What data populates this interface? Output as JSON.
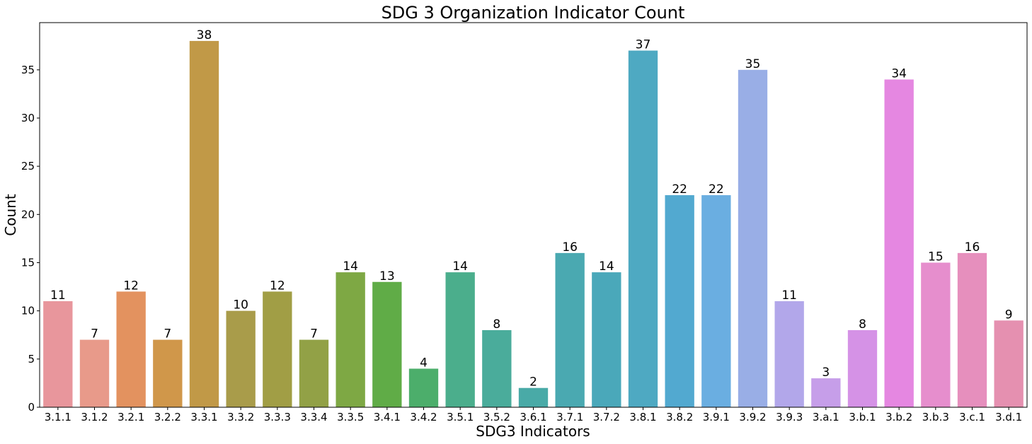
{
  "chart_data": {
    "type": "bar",
    "title": "SDG 3 Organization Indicator Count",
    "xlabel": "SDG3 Indicators",
    "ylabel": "Count",
    "ylim": [
      0,
      39.9
    ],
    "yticks": [
      0,
      5,
      10,
      15,
      20,
      25,
      30,
      35
    ],
    "grid": false,
    "legend": "none",
    "categories": [
      "3.1.1",
      "3.1.2",
      "3.2.1",
      "3.2.2",
      "3.3.1",
      "3.3.2",
      "3.3.3",
      "3.3.4",
      "3.3.5",
      "3.4.1",
      "3.4.2",
      "3.5.1",
      "3.5.2",
      "3.6.1",
      "3.7.1",
      "3.7.2",
      "3.8.1",
      "3.8.2",
      "3.9.1",
      "3.9.2",
      "3.9.3",
      "3.a.1",
      "3.b.1",
      "3.b.2",
      "3.b.3",
      "3.c.1",
      "3.d.1"
    ],
    "values": [
      11,
      7,
      12,
      7,
      38,
      10,
      12,
      7,
      14,
      13,
      4,
      14,
      8,
      2,
      16,
      14,
      37,
      22,
      22,
      35,
      11,
      3,
      8,
      34,
      15,
      16,
      9
    ],
    "colors": [
      "#e8969c",
      "#e89a8a",
      "#e3925f",
      "#d0974a",
      "#c19947",
      "#a99c4a",
      "#a19e45",
      "#92a146",
      "#7ea844",
      "#60ac47",
      "#4cae6b",
      "#4bae8c",
      "#4aac9b",
      "#49aaa7",
      "#4aa9b1",
      "#4aa8ba",
      "#4ea9c2",
      "#52a9d0",
      "#6aaee1",
      "#99aee6",
      "#b2a7ea",
      "#c69ee9",
      "#d592e6",
      "#e587e1",
      "#e68ecd",
      "#e68fbd",
      "#e590b0"
    ]
  }
}
